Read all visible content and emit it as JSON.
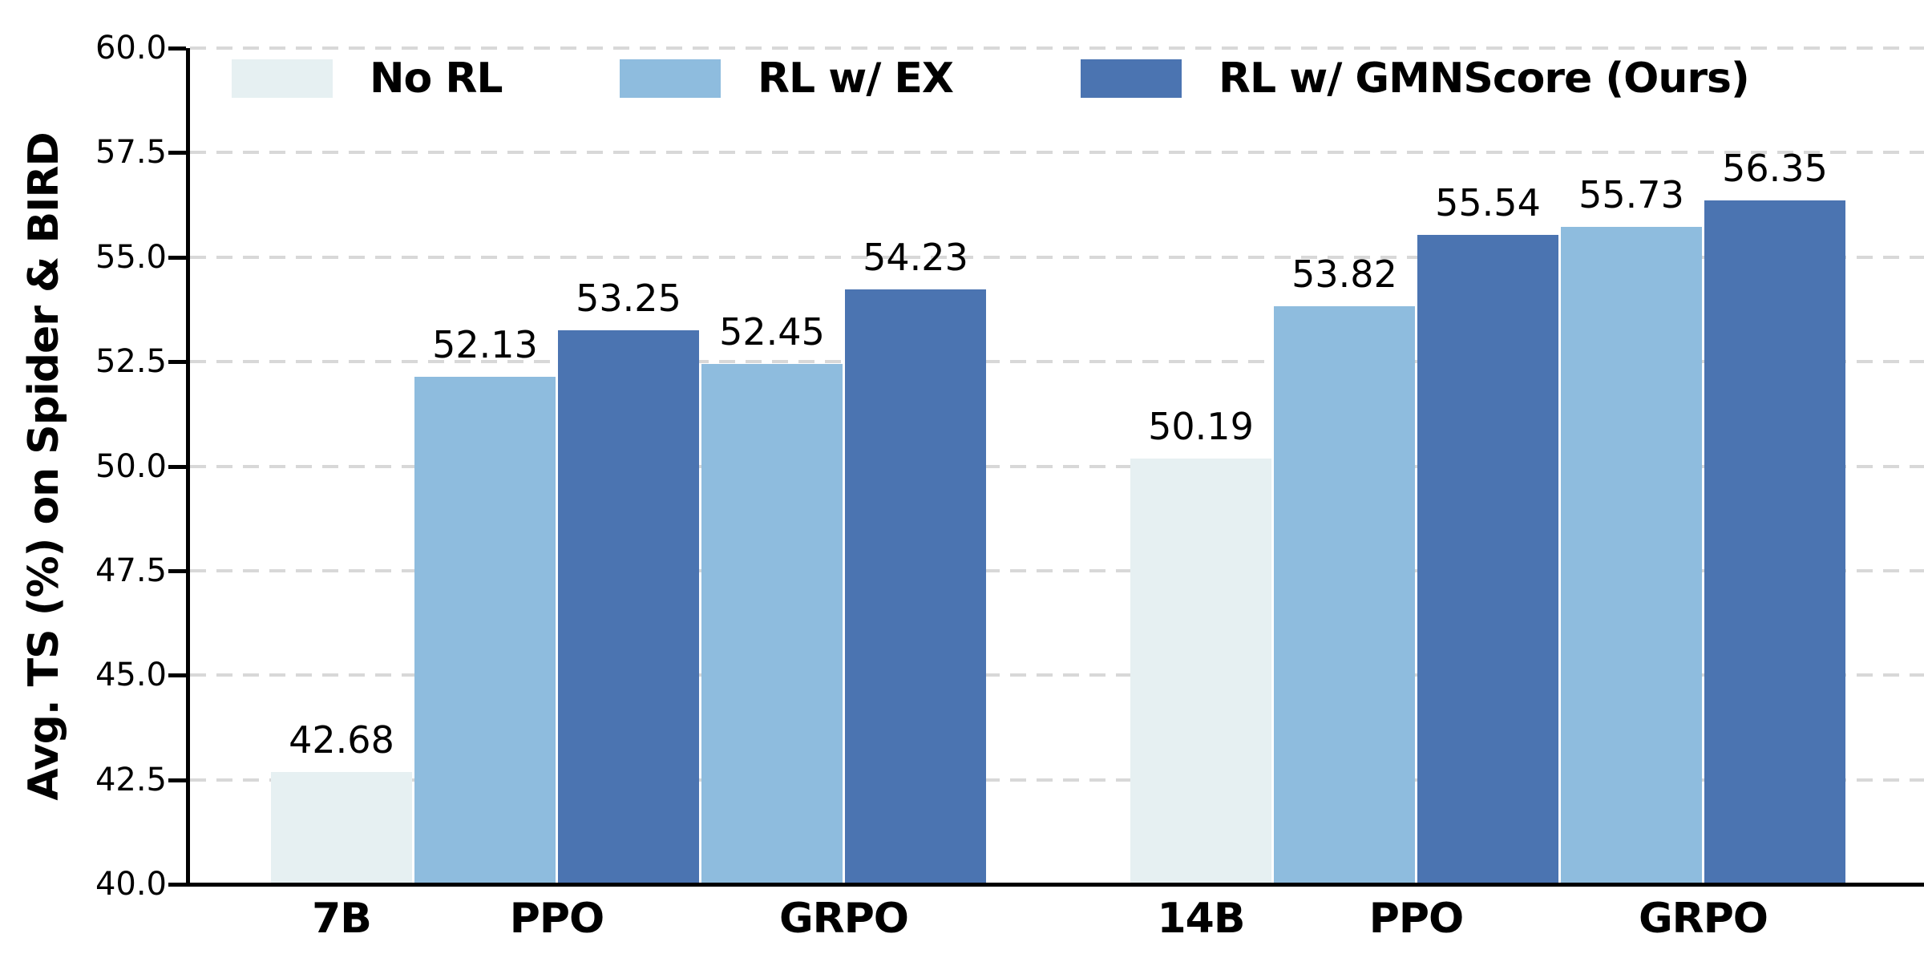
{
  "chart_data": {
    "type": "bar",
    "title": "",
    "xlabel": "",
    "ylabel": "Avg. TS (%) on Spider & BIRD",
    "ylim": [
      40.0,
      60.0
    ],
    "yticks": [
      40.0,
      42.5,
      45.0,
      47.5,
      50.0,
      52.5,
      55.0,
      57.5,
      60.0
    ],
    "ytick_labels": [
      "40.0",
      "42.5",
      "45.0",
      "47.5",
      "50.0",
      "52.5",
      "55.0",
      "57.5",
      "60.0"
    ],
    "grid": {
      "axis": "y",
      "style": "dashed",
      "color": "#d8d8d8",
      "visible": true
    },
    "legend": {
      "position": "top-inside",
      "entries": [
        {
          "label": "No RL",
          "color": "#e6f0f2"
        },
        {
          "label": "RL w/ EX",
          "color": "#8ebcde"
        },
        {
          "label": "RL w/ GMNScore (Ours)",
          "color": "#4b74b1"
        }
      ]
    },
    "series": [
      {
        "name": "No RL",
        "color": "#e6f0f2"
      },
      {
        "name": "RL w/ EX",
        "color": "#8ebcde"
      },
      {
        "name": "RL w/ GMNScore (Ours)",
        "color": "#4b74b1"
      }
    ],
    "groups": [
      {
        "name": "7B",
        "tick_labels": [
          "7B",
          "PPO",
          "GRPO"
        ],
        "bars": [
          {
            "series": "No RL",
            "x_cluster": "7B",
            "value": 42.68,
            "label": "42.68"
          },
          {
            "series": "RL w/ EX",
            "x_cluster": "PPO",
            "value": 52.13,
            "label": "52.13"
          },
          {
            "series": "RL w/ GMNScore (Ours)",
            "x_cluster": "PPO",
            "value": 53.25,
            "label": "53.25"
          },
          {
            "series": "RL w/ EX",
            "x_cluster": "GRPO",
            "value": 52.45,
            "label": "52.45"
          },
          {
            "series": "RL w/ GMNScore (Ours)",
            "x_cluster": "GRPO",
            "value": 54.23,
            "label": "54.23"
          }
        ]
      },
      {
        "name": "14B",
        "tick_labels": [
          "14B",
          "PPO",
          "GRPO"
        ],
        "bars": [
          {
            "series": "No RL",
            "x_cluster": "14B",
            "value": 50.19,
            "label": "50.19"
          },
          {
            "series": "RL w/ EX",
            "x_cluster": "PPO",
            "value": 53.82,
            "label": "53.82"
          },
          {
            "series": "RL w/ GMNScore (Ours)",
            "x_cluster": "PPO",
            "value": 55.54,
            "label": "55.54"
          },
          {
            "series": "RL w/ EX",
            "x_cluster": "GRPO",
            "value": 55.73,
            "label": "55.73"
          },
          {
            "series": "RL w/ GMNScore (Ours)",
            "x_cluster": "GRPO",
            "value": 56.35,
            "label": "56.35"
          }
        ]
      }
    ]
  }
}
